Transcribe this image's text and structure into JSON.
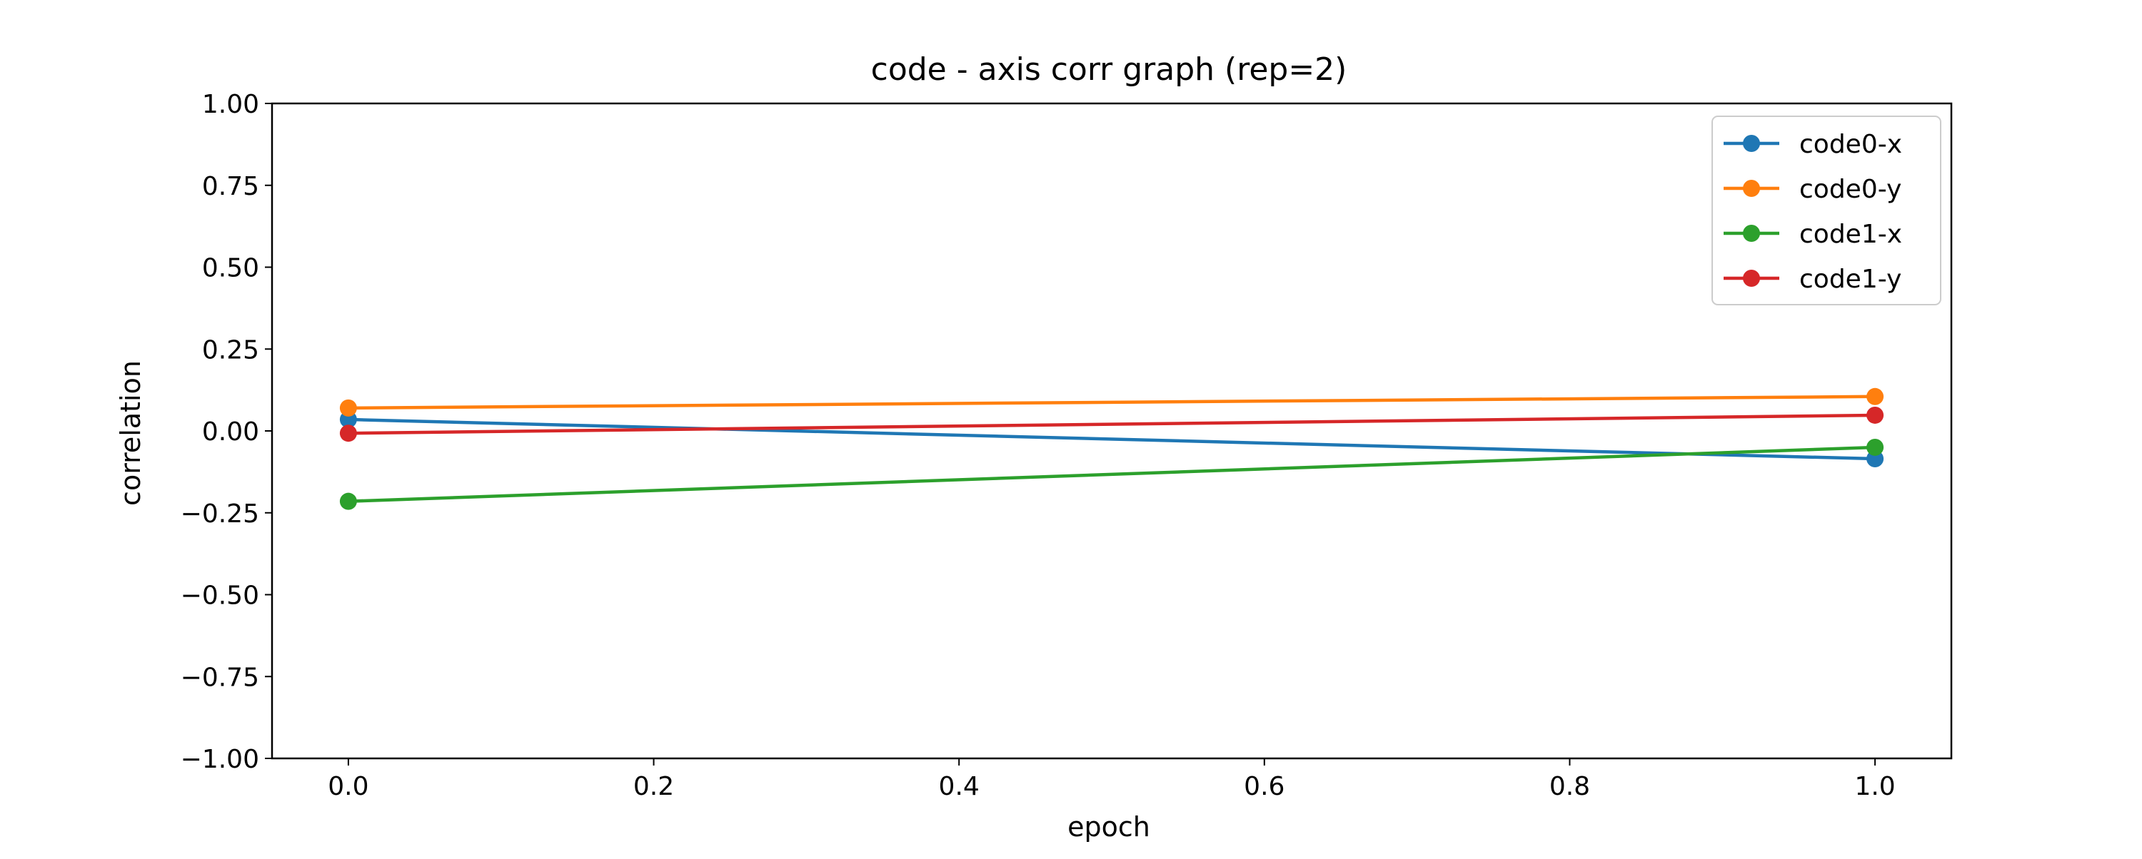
{
  "chart_data": {
    "type": "line",
    "title": "code - axis corr graph (rep=2)",
    "xlabel": "epoch",
    "ylabel": "correlation",
    "xlim": [
      -0.05,
      1.05
    ],
    "ylim": [
      -1.0,
      1.0
    ],
    "xticks": [
      0.0,
      0.2,
      0.4,
      0.6,
      0.8,
      1.0
    ],
    "xtick_labels": [
      "0.0",
      "0.2",
      "0.4",
      "0.6",
      "0.8",
      "1.0"
    ],
    "yticks": [
      -1.0,
      -0.75,
      -0.5,
      -0.25,
      0.0,
      0.25,
      0.5,
      0.75,
      1.0
    ],
    "ytick_labels": [
      "−1.00",
      "−0.75",
      "−0.50",
      "−0.25",
      "0.00",
      "0.25",
      "0.50",
      "0.75",
      "1.00"
    ],
    "grid": false,
    "legend_position": "top-right",
    "x": [
      0.0,
      1.0
    ],
    "series": [
      {
        "name": "code0-x",
        "color": "#1f77b4",
        "values": [
          0.035,
          -0.085
        ]
      },
      {
        "name": "code0-y",
        "color": "#ff7f0e",
        "values": [
          0.07,
          0.105
        ]
      },
      {
        "name": "code1-x",
        "color": "#2ca02c",
        "values": [
          -0.215,
          -0.05
        ]
      },
      {
        "name": "code1-y",
        "color": "#d62728",
        "values": [
          -0.007,
          0.048
        ]
      }
    ]
  }
}
